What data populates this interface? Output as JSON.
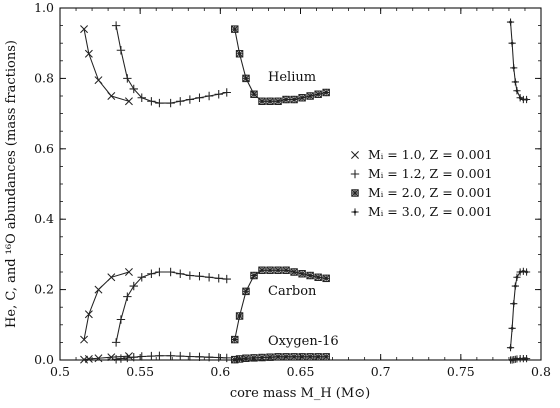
{
  "chart_data": {
    "type": "line",
    "title": "",
    "xlabel": "core mass  M_H  (M⊙)",
    "ylabel": "He, C, and ¹⁶O abundances  (mass fractions)",
    "xlim": [
      0.5,
      0.8
    ],
    "ylim": [
      0.0,
      1.0
    ],
    "xticks": [
      "0.5",
      "0.55",
      "0.6",
      "0.65",
      "0.7",
      "0.75",
      "0.8"
    ],
    "yticks": [
      "0.0",
      "0.2",
      "0.4",
      "0.6",
      "0.8",
      "1.0"
    ],
    "grid": false,
    "legend_position": "right-middle",
    "legend": [
      {
        "marker": "x",
        "label": "Mᵢ = 1.0,  Z = 0.001"
      },
      {
        "marker": "plus",
        "label": "Mᵢ = 1.2,  Z = 0.001"
      },
      {
        "marker": "star",
        "label": "Mᵢ = 2.0,  Z = 0.001"
      },
      {
        "marker": "cross4",
        "label": "Mᵢ = 3.0,  Z = 0.001"
      }
    ],
    "annotations": [
      "Helium",
      "Carbon",
      "Oxygen-16"
    ],
    "series": [
      {
        "marker": "x",
        "element": "Helium",
        "x": [
          0.515,
          0.518,
          0.524,
          0.532,
          0.543
        ],
        "y": [
          0.94,
          0.87,
          0.795,
          0.75,
          0.735
        ]
      },
      {
        "marker": "x",
        "element": "Carbon",
        "x": [
          0.515,
          0.518,
          0.524,
          0.532,
          0.543
        ],
        "y": [
          0.058,
          0.13,
          0.2,
          0.235,
          0.25
        ]
      },
      {
        "marker": "x",
        "element": "Oxygen-16",
        "x": [
          0.515,
          0.518,
          0.524,
          0.532,
          0.543
        ],
        "y": [
          0.001,
          0.003,
          0.005,
          0.008,
          0.011
        ]
      },
      {
        "marker": "plus",
        "element": "Helium",
        "x": [
          0.535,
          0.538,
          0.542,
          0.546,
          0.551,
          0.557,
          0.562,
          0.569,
          0.575,
          0.581,
          0.587,
          0.593,
          0.599,
          0.604
        ],
        "y": [
          0.95,
          0.88,
          0.8,
          0.77,
          0.745,
          0.735,
          0.73,
          0.73,
          0.735,
          0.74,
          0.745,
          0.75,
          0.755,
          0.76
        ]
      },
      {
        "marker": "plus",
        "element": "Carbon",
        "x": [
          0.535,
          0.538,
          0.542,
          0.546,
          0.551,
          0.557,
          0.562,
          0.569,
          0.575,
          0.581,
          0.587,
          0.593,
          0.599,
          0.604
        ],
        "y": [
          0.05,
          0.115,
          0.18,
          0.21,
          0.235,
          0.245,
          0.25,
          0.25,
          0.245,
          0.24,
          0.238,
          0.235,
          0.232,
          0.23
        ]
      },
      {
        "marker": "plus",
        "element": "Oxygen-16",
        "x": [
          0.535,
          0.538,
          0.542,
          0.546,
          0.551,
          0.557,
          0.562,
          0.569,
          0.575,
          0.581,
          0.587,
          0.593,
          0.599,
          0.604
        ],
        "y": [
          0.002,
          0.004,
          0.006,
          0.008,
          0.01,
          0.011,
          0.012,
          0.012,
          0.011,
          0.01,
          0.009,
          0.008,
          0.007,
          0.006
        ]
      },
      {
        "marker": "star",
        "element": "Helium",
        "x": [
          0.609,
          0.612,
          0.616,
          0.621,
          0.626,
          0.631,
          0.636,
          0.641,
          0.646,
          0.651,
          0.656,
          0.661,
          0.666
        ],
        "y": [
          0.94,
          0.87,
          0.8,
          0.755,
          0.735,
          0.735,
          0.735,
          0.74,
          0.74,
          0.745,
          0.75,
          0.755,
          0.76
        ]
      },
      {
        "marker": "star",
        "element": "Carbon",
        "x": [
          0.609,
          0.612,
          0.616,
          0.621,
          0.626,
          0.631,
          0.636,
          0.641,
          0.646,
          0.651,
          0.656,
          0.661,
          0.666
        ],
        "y": [
          0.058,
          0.125,
          0.195,
          0.24,
          0.255,
          0.255,
          0.255,
          0.255,
          0.25,
          0.245,
          0.24,
          0.235,
          0.232
        ]
      },
      {
        "marker": "star",
        "element": "Oxygen-16",
        "x": [
          0.609,
          0.612,
          0.616,
          0.621,
          0.626,
          0.631,
          0.636,
          0.641,
          0.646,
          0.651,
          0.656,
          0.661,
          0.666
        ],
        "y": [
          0.001,
          0.003,
          0.005,
          0.006,
          0.007,
          0.008,
          0.009,
          0.009,
          0.009,
          0.009,
          0.009,
          0.009,
          0.009
        ]
      },
      {
        "marker": "cross4",
        "element": "Helium",
        "x": [
          0.781,
          0.782,
          0.783,
          0.784,
          0.785,
          0.787,
          0.789,
          0.791
        ],
        "y": [
          0.96,
          0.9,
          0.83,
          0.79,
          0.765,
          0.745,
          0.74,
          0.74
        ]
      },
      {
        "marker": "cross4",
        "element": "Carbon",
        "x": [
          0.781,
          0.782,
          0.783,
          0.784,
          0.785,
          0.787,
          0.789,
          0.791
        ],
        "y": [
          0.035,
          0.09,
          0.16,
          0.21,
          0.235,
          0.25,
          0.252,
          0.25
        ]
      },
      {
        "marker": "cross4",
        "element": "Oxygen-16",
        "x": [
          0.781,
          0.782,
          0.783,
          0.784,
          0.785,
          0.787,
          0.789,
          0.791
        ],
        "y": [
          0.0,
          0.0,
          0.001,
          0.002,
          0.003,
          0.004,
          0.004,
          0.004
        ]
      }
    ]
  }
}
